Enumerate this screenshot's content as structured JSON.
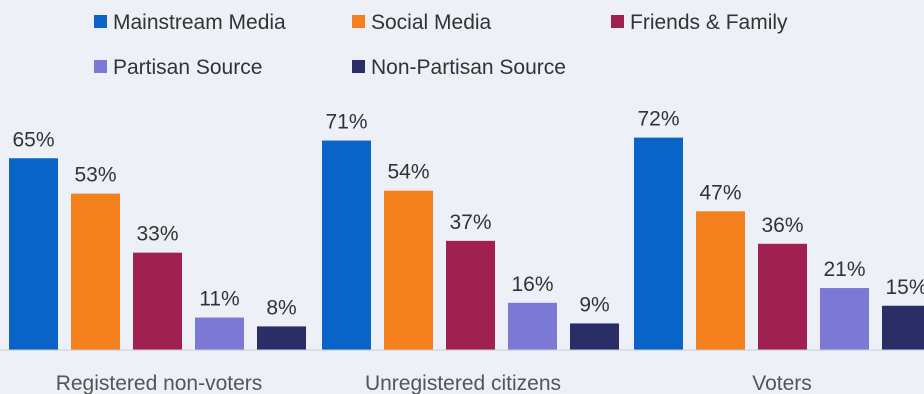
{
  "chart_data": {
    "type": "bar",
    "categories": [
      "Registered non-voters",
      "Unregistered citizens",
      "Voters"
    ],
    "series": [
      {
        "name": "Mainstream Media",
        "color": "#0a64c8",
        "values": [
          65,
          71,
          72
        ],
        "labels": [
          "65%",
          "71%",
          "72%"
        ]
      },
      {
        "name": "Social Media",
        "color": "#f5801e",
        "values": [
          53,
          54,
          47
        ],
        "labels": [
          "53%",
          "54%",
          "47%"
        ]
      },
      {
        "name": "Friends & Family",
        "color": "#a02150",
        "values": [
          33,
          37,
          36
        ],
        "labels": [
          "33%",
          "37%",
          "36%"
        ]
      },
      {
        "name": "Partisan Source",
        "color": "#7b78d6",
        "values": [
          11,
          16,
          21
        ],
        "labels": [
          "11%",
          "16%",
          "21%"
        ]
      },
      {
        "name": "Non-Partisan Source",
        "color": "#2b2d66",
        "values": [
          8,
          9,
          15
        ],
        "labels": [
          "8%",
          "9%",
          "15%"
        ]
      }
    ],
    "ylim": [
      0,
      80
    ],
    "grid": false,
    "legend_position": "top"
  }
}
